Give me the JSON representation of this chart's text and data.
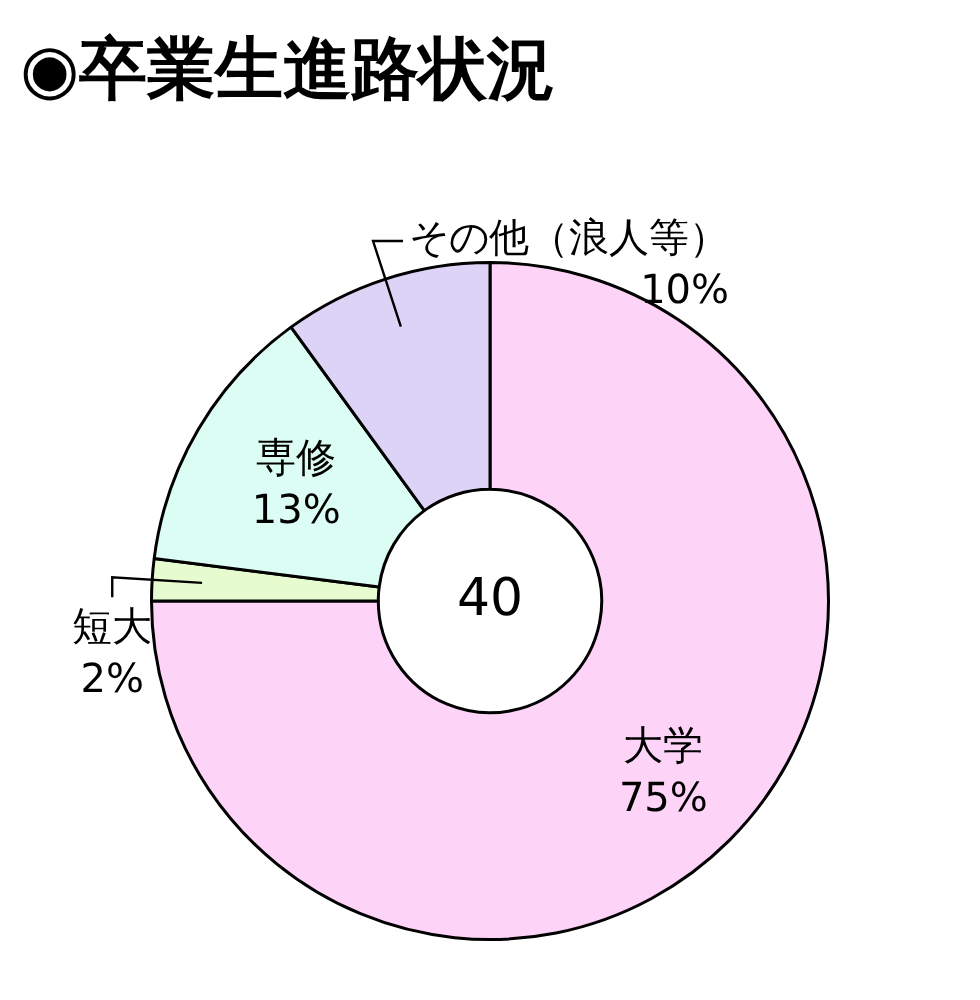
{
  "chart_data": {
    "type": "donut",
    "title": "◉卒業生進路状況",
    "categories": [
      "大学",
      "短大",
      "専修",
      "その他（浪人等）"
    ],
    "values": [
      75,
      2,
      13,
      10
    ],
    "value_labels": [
      "75%",
      "2%",
      "13%",
      "10%"
    ],
    "colors": [
      "#fdd3f7",
      "#e6fbcf",
      "#dcfdf3",
      "#dcd3f7"
    ],
    "annotations": [
      "40"
    ],
    "legend": false
  }
}
